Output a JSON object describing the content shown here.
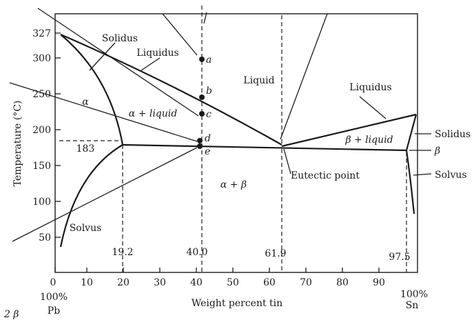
{
  "diagram": {
    "x_axis": {
      "label": "Weight percent tin",
      "ticks": [
        "0",
        "10",
        "20",
        "30",
        "40",
        "50",
        "60",
        "70",
        "80",
        "90"
      ],
      "left_end": [
        "100%",
        "Pb"
      ],
      "right_end": [
        "100%",
        "Sn"
      ]
    },
    "y_axis": {
      "label": "Temperature (°C)",
      "ticks": [
        "327",
        "300",
        "250",
        "200",
        "150",
        "100",
        "50"
      ]
    },
    "special_temp": "183",
    "compositions": [
      "19.2",
      "40.0",
      "61.9",
      "97.5"
    ],
    "regions": {
      "alpha": "α",
      "alpha_liquid": "α + liquid",
      "liquid": "Liquid",
      "beta_liquid": "β + liquid",
      "alpha_beta": "α + β"
    },
    "callouts": {
      "solidus_left": "Solidus",
      "liquidus_left": "Liquidus",
      "liquidus_right": "Liquidus",
      "solidus_right": "Solidus",
      "beta": "β",
      "solvus_right": "Solvus",
      "solvus_left": "Solvus",
      "eutectic": "Eutectic point"
    },
    "points": {
      "a": "a",
      "b": "b",
      "c": "c",
      "d": "d",
      "e": "e"
    },
    "corner_mark": "2 β"
  }
}
